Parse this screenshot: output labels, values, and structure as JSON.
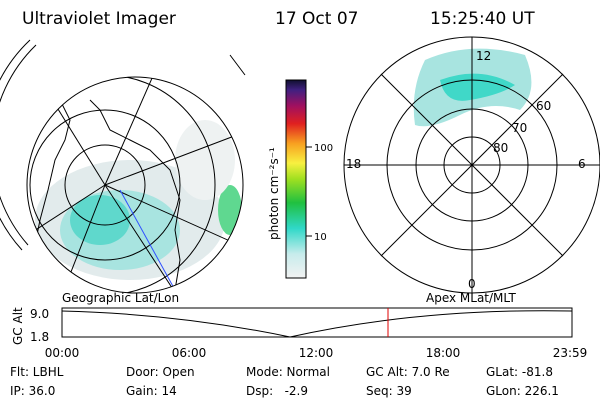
{
  "header": {
    "title": "Ultraviolet Imager",
    "date": "17 Oct 07",
    "time": "15:25:40 UT"
  },
  "left_map": {
    "label": "Geographic Lat/Lon"
  },
  "right_map": {
    "label": "Apex MLat/MLT",
    "mlt_labels": [
      "12",
      "18",
      "6",
      "0"
    ],
    "lat_labels": [
      "60",
      "70",
      "80"
    ]
  },
  "colorbar": {
    "unit_label": "photon cm⁻²s⁻¹",
    "ticks": [
      "100",
      "10"
    ]
  },
  "orbit_plot": {
    "y_label": "GC Alt",
    "y_ticks": [
      "9.0",
      "1.8"
    ],
    "x_ticks": [
      "00:00",
      "06:00",
      "12:00",
      "18:00",
      "23:59"
    ]
  },
  "status": {
    "rows": [
      [
        "Flt: LBHL",
        "Door: Open",
        "Mode: Normal",
        "GC Alt: 7.0 Re",
        "GLat: -81.8"
      ],
      [
        "IP: 36.0",
        "Gain: 14",
        "Dsp:   -2.9",
        "Seq: 39",
        "GLon: 226.1"
      ]
    ]
  }
}
